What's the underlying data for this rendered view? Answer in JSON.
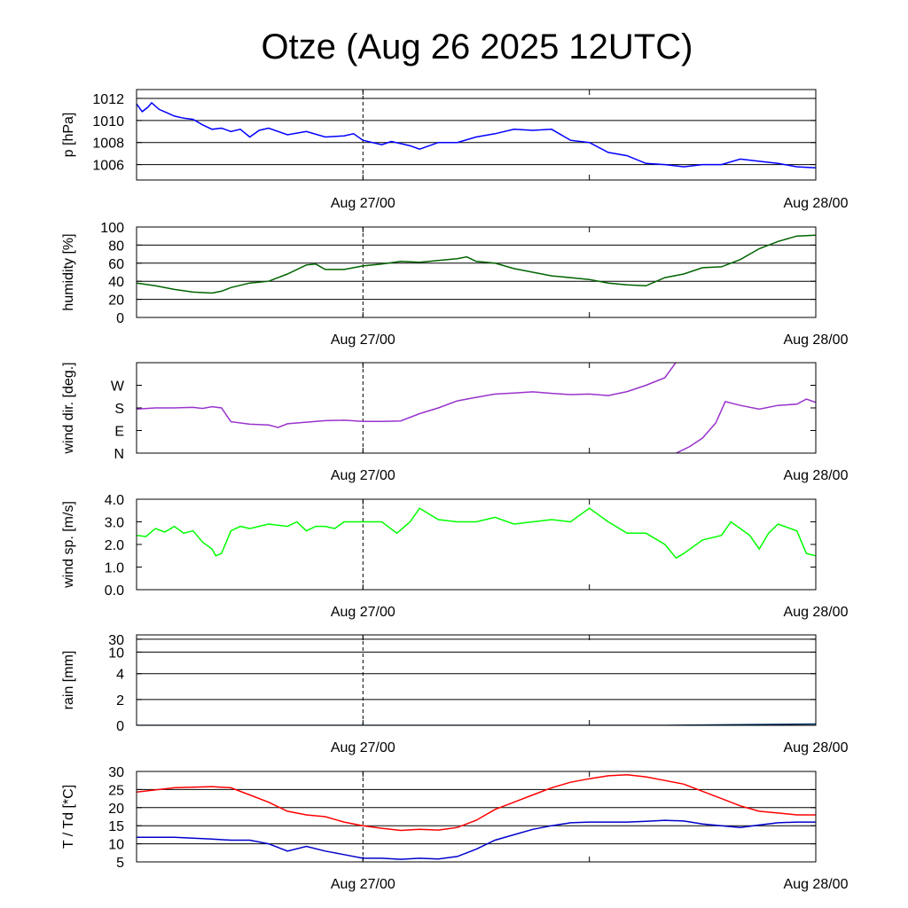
{
  "chart_data": {
    "title": "Otze (Aug 26 2025 12UTC)",
    "x_ticks": [
      "Aug 27/00",
      "Aug 28/00"
    ],
    "x_range_hours": [
      0,
      36
    ],
    "x_ticks_hours": [
      12,
      36
    ],
    "panels": [
      {
        "id": "pressure",
        "type": "line",
        "ylabel": "p [hPa]",
        "ylim": [
          1004.6,
          1012.8
        ],
        "yticks": [
          1006,
          1008,
          1010,
          1012
        ],
        "ytick_labels": [
          "1006",
          "1008",
          "1010",
          "1012"
        ],
        "grid": true,
        "series": [
          {
            "name": "p",
            "color": "#0000ff",
            "x": [
              0,
              0.3,
              0.6,
              0.8,
              1.2,
              1.6,
              2.0,
              2.5,
              3.0,
              3.5,
              4.0,
              4.5,
              5.0,
              5.5,
              6.0,
              6.5,
              7.0,
              8.0,
              9.0,
              10.0,
              11.0,
              11.5,
              12.0,
              13.0,
              13.5,
              14.5,
              15.0,
              16.0,
              17.0,
              18.0,
              19.0,
              20.0,
              21.0,
              22.0,
              23.0,
              24.0,
              25.0,
              26.0,
              27.0,
              28.0,
              29.0,
              30.0,
              31.0,
              32.0,
              33.0,
              34.0,
              35.0,
              36.0
            ],
            "values": [
              1011.5,
              1010.8,
              1011.2,
              1011.6,
              1011.0,
              1010.7,
              1010.4,
              1010.2,
              1010.1,
              1009.6,
              1009.2,
              1009.3,
              1009.0,
              1009.2,
              1008.5,
              1009.1,
              1009.3,
              1008.7,
              1009.0,
              1008.5,
              1008.6,
              1008.8,
              1008.2,
              1007.8,
              1008.1,
              1007.7,
              1007.4,
              1008.0,
              1008.0,
              1008.5,
              1008.8,
              1009.2,
              1009.1,
              1009.2,
              1008.2,
              1008.0,
              1007.1,
              1006.8,
              1006.1,
              1006.0,
              1005.8,
              1006.0,
              1006.0,
              1006.5,
              1006.3,
              1006.1,
              1005.8,
              1005.7
            ]
          }
        ]
      },
      {
        "id": "humidity",
        "type": "line",
        "ylabel": "humidity [%]",
        "ylim": [
          0,
          100
        ],
        "yticks": [
          0,
          20,
          40,
          60,
          80,
          100
        ],
        "ytick_labels": [
          "0",
          "20",
          "40",
          "60",
          "80",
          "100"
        ],
        "grid": true,
        "series": [
          {
            "name": "humidity",
            "color": "#006400",
            "x": [
              0,
              1,
              2,
              3,
              4,
              4.5,
              5,
              6,
              7,
              8,
              9,
              9.5,
              10,
              11,
              12,
              13,
              14,
              15,
              16,
              17,
              17.5,
              18,
              19,
              20,
              21,
              22,
              23,
              24,
              25,
              26,
              27,
              28,
              29,
              30,
              31,
              32,
              33,
              34,
              35,
              36
            ],
            "values": [
              38,
              35,
              31,
              28,
              27,
              29,
              33,
              38,
              40,
              48,
              58,
              59,
              53,
              53,
              57,
              59,
              62,
              61,
              63,
              65,
              67,
              62,
              60,
              54,
              50,
              46,
              44,
              42,
              38,
              36,
              35,
              44,
              48,
              55,
              56,
              64,
              76,
              84,
              90,
              91
            ]
          }
        ]
      },
      {
        "id": "wind_dir",
        "type": "line",
        "ylabel": "wind dir. [deg.]",
        "ylim": [
          0,
          360
        ],
        "yticks": [
          0,
          90,
          180,
          270
        ],
        "ytick_labels": [
          "N",
          "E",
          "S",
          "W"
        ],
        "grid": false,
        "series": [
          {
            "name": "wind dir (before wrap)",
            "color": "#9933cc",
            "x": [
              0,
              1,
              2,
              3,
              3.5,
              4,
              4.5,
              5,
              6,
              7,
              7.5,
              8,
              9,
              10,
              11,
              12,
              13,
              14,
              15,
              16,
              17,
              18,
              19,
              20,
              21,
              22,
              23,
              24,
              25,
              26,
              27,
              28,
              28.6
            ],
            "values": [
              175,
              180,
              180,
              182,
              178,
              185,
              180,
              125,
              115,
              112,
              102,
              117,
              123,
              129,
              131,
              126,
              126,
              128,
              157,
              180,
              208,
              222,
              235,
              239,
              244,
              238,
              233,
              235,
              229,
              245,
              270,
              300,
              362
            ]
          },
          {
            "name": "wind dir (after wrap)",
            "color": "#9933cc",
            "x": [
              28.6,
              29.3,
              30.0,
              30.7,
              31.2,
              32.0,
              33.0,
              34.0,
              35.0,
              35.5,
              36.0
            ],
            "values": [
              0,
              25,
              60,
              120,
              205,
              190,
              175,
              190,
              195,
              215,
              202
            ]
          }
        ]
      },
      {
        "id": "wind_speed",
        "type": "line",
        "ylabel": "wind sp. [m/s]",
        "ylim": [
          0,
          4
        ],
        "yticks": [
          0,
          1,
          2,
          3,
          4
        ],
        "ytick_labels": [
          "0.0",
          "1.0",
          "2.0",
          "3.0",
          "4.0"
        ],
        "grid": false,
        "series": [
          {
            "name": "wind speed",
            "color": "#00ff00",
            "x": [
              0,
              0.5,
              1,
              1.5,
              2,
              2.5,
              3,
              3.5,
              4,
              4.2,
              4.5,
              5,
              5.5,
              6,
              7,
              8,
              8.5,
              9,
              9.5,
              10,
              10.5,
              11,
              12,
              13,
              13.8,
              14.5,
              15,
              16,
              17,
              18,
              19,
              20,
              21,
              22,
              23,
              24,
              25,
              26,
              27,
              28,
              28.6,
              29,
              30,
              31,
              31.5,
              32,
              32.5,
              33,
              33.5,
              34,
              35,
              35.5,
              36
            ],
            "values": [
              2.4,
              2.35,
              2.7,
              2.55,
              2.8,
              2.5,
              2.6,
              2.1,
              1.8,
              1.5,
              1.6,
              2.6,
              2.8,
              2.7,
              2.9,
              2.8,
              3.0,
              2.6,
              2.8,
              2.8,
              2.7,
              3.0,
              3.0,
              3.0,
              2.5,
              3.0,
              3.6,
              3.1,
              3.0,
              3.0,
              3.2,
              2.9,
              3.0,
              3.1,
              3.0,
              3.6,
              3.0,
              2.5,
              2.5,
              2.0,
              1.4,
              1.6,
              2.2,
              2.4,
              3.0,
              2.7,
              2.4,
              1.8,
              2.5,
              2.9,
              2.6,
              1.6,
              1.5
            ]
          }
        ]
      },
      {
        "id": "rain",
        "type": "line",
        "ylabel": "rain [mm]",
        "ylim": [
          0,
          30
        ],
        "yticks": [
          0,
          2,
          4,
          10,
          30
        ],
        "ytick_labels": [
          "0",
          "2",
          "4",
          "10",
          "30"
        ],
        "grid": true,
        "series": [
          {
            "name": "rain",
            "color": "#003366",
            "x": [
              0,
              28,
              36
            ],
            "values": [
              0,
              0,
              0.1
            ]
          }
        ]
      },
      {
        "id": "temperature",
        "type": "line",
        "ylabel": "T / Td [*C]",
        "ylim": [
          5,
          30
        ],
        "yticks": [
          5,
          10,
          15,
          20,
          25,
          30
        ],
        "ytick_labels": [
          "5",
          "10",
          "15",
          "20",
          "25",
          "30"
        ],
        "grid": true,
        "series": [
          {
            "name": "T",
            "color": "#ff0000",
            "x": [
              0,
              2,
              4,
              5,
              6,
              7,
              8,
              9,
              10,
              11,
              12,
              13,
              14,
              15,
              16,
              17,
              18,
              19,
              20,
              21,
              22,
              23,
              24,
              25,
              26,
              27,
              28,
              29,
              30,
              31,
              32,
              33,
              34,
              35,
              36
            ],
            "values": [
              24.3,
              25.5,
              25.8,
              25.5,
              23.5,
              21.5,
              19.0,
              18.0,
              17.5,
              16.0,
              15.0,
              14.3,
              13.7,
              14.0,
              13.8,
              14.5,
              16.5,
              19.5,
              21.5,
              23.5,
              25.5,
              27.0,
              28.0,
              28.8,
              29.1,
              28.5,
              27.5,
              26.5,
              24.5,
              22.5,
              20.5,
              19.0,
              18.5,
              18.0,
              18.0
            ]
          },
          {
            "name": "Td",
            "color": "#0000cc",
            "x": [
              0,
              2,
              4,
              5,
              6,
              7,
              8,
              9,
              10,
              11,
              12,
              13,
              14,
              15,
              16,
              17,
              18,
              19,
              20,
              21,
              22,
              23,
              24,
              25,
              26,
              27,
              28,
              29,
              30,
              31,
              32,
              33,
              34,
              35,
              36
            ],
            "values": [
              11.8,
              11.8,
              11.3,
              11.0,
              11.0,
              10.0,
              8.0,
              9.3,
              8.0,
              7.0,
              6.0,
              6.0,
              5.7,
              6.0,
              5.8,
              6.5,
              8.5,
              11.0,
              12.5,
              14.0,
              15.0,
              15.8,
              16.0,
              16.0,
              16.0,
              16.2,
              16.5,
              16.3,
              15.5,
              15.0,
              14.5,
              15.2,
              15.8,
              16.0,
              16.0
            ]
          }
        ]
      }
    ]
  }
}
